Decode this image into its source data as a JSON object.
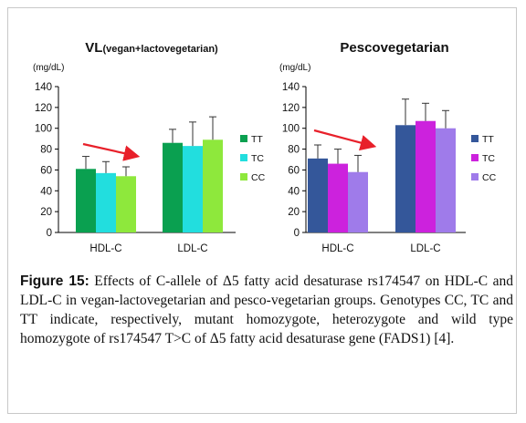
{
  "figure": {
    "caption_lead": "Figure 15:",
    "caption_text": "Effects of C-allele of Δ5 fatty acid desaturase rs174547 on HDL-C and LDL-C in vegan-lactovegetarian and pesco-vegetarian groups. Genotypes CC, TC and TT indicate, respectively, mutant homozygote, heterozygote and wild type homozygote of rs174547 T>C of Δ5 fatty acid desaturase gene (FADS1) [4]."
  },
  "colors": {
    "trend_arrow": "#e8202a",
    "error_bar": "#333333",
    "axis": "#000000"
  },
  "chart_data": [
    {
      "type": "bar",
      "title_main": "VL",
      "title_sub": "(vegan+lactovegetarian)",
      "ylabel": "(mg/dL)",
      "ylim": [
        0,
        140
      ],
      "yticks": [
        0,
        20,
        40,
        60,
        80,
        100,
        120,
        140
      ],
      "categories": [
        "HDL-C",
        "LDL-C"
      ],
      "grid": false,
      "legend_position": "right",
      "series": [
        {
          "name": "TT",
          "color": "#0aa050",
          "values": [
            61,
            86
          ],
          "errors": [
            12,
            13
          ]
        },
        {
          "name": "TC",
          "color": "#22dede",
          "values": [
            57,
            83
          ],
          "errors": [
            11,
            23
          ]
        },
        {
          "name": "CC",
          "color": "#8ee83c",
          "values": [
            54,
            89
          ],
          "errors": [
            9,
            22
          ]
        }
      ],
      "annotation": "trend arrow over HDL-C bars"
    },
    {
      "type": "bar",
      "title_main": "Pescovegetarian",
      "title_sub": "",
      "ylabel": "(mg/dL)",
      "ylim": [
        0,
        140
      ],
      "yticks": [
        0,
        20,
        40,
        60,
        80,
        100,
        120,
        140
      ],
      "categories": [
        "HDL-C",
        "LDL-C"
      ],
      "grid": false,
      "legend_position": "right",
      "series": [
        {
          "name": "TT",
          "color": "#34579a",
          "values": [
            71,
            103
          ],
          "errors": [
            13,
            25
          ]
        },
        {
          "name": "TC",
          "color": "#cc22dd",
          "values": [
            66,
            107
          ],
          "errors": [
            14,
            17
          ]
        },
        {
          "name": "CC",
          "color": "#9f7bea",
          "values": [
            58,
            100
          ],
          "errors": [
            16,
            17
          ]
        }
      ],
      "annotation": "trend arrow over HDL-C bars"
    }
  ]
}
